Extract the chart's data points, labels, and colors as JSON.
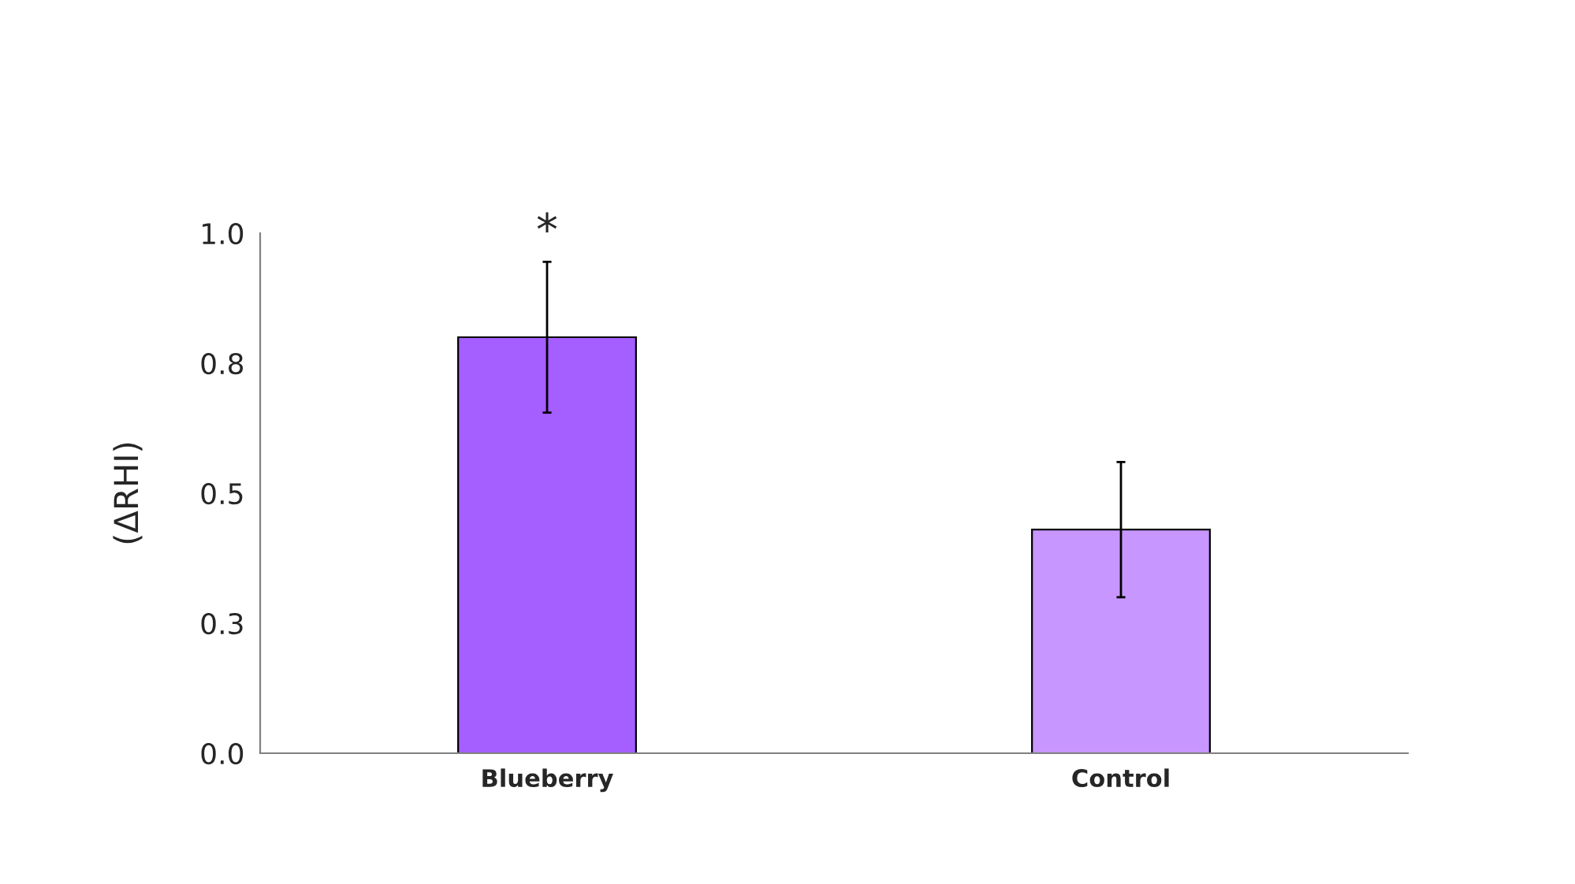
{
  "chart_data": {
    "type": "bar",
    "ylabel": "(ΔRHI)",
    "categories": [
      "Blueberry",
      "Control"
    ],
    "values": [
      0.8,
      0.43
    ],
    "colors": [
      "#a55eff",
      "#c896ff"
    ],
    "errors": [
      0.145,
      0.13
    ],
    "ylim": [
      0,
      1.0
    ],
    "yticks": [
      {
        "value": 0,
        "label": "0.0"
      },
      {
        "value": 0.25,
        "label": "0.3"
      },
      {
        "value": 0.5,
        "label": "0.5"
      },
      {
        "value": 0.75,
        "label": "0.8"
      },
      {
        "value": 1.0,
        "label": "1.0"
      }
    ],
    "grid": false,
    "legend": false,
    "annotations": [
      {
        "text": "*",
        "x": "Blueberry",
        "y": 0.96
      }
    ]
  }
}
